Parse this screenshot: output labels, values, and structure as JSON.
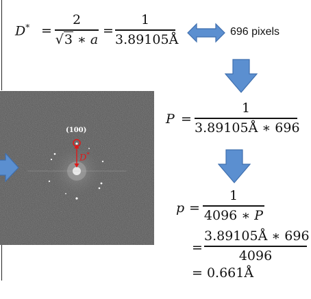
{
  "colors": {
    "arrow_fill": "#5b8fd0",
    "arrow_stroke": "#3f6fae",
    "annotation_red": "#e01818",
    "fft_bg": "#4a4a4a",
    "text": "#111111"
  },
  "eq1": {
    "lhs": "D",
    "lhs_sup": "*",
    "eq": "=",
    "frac1_num": "2",
    "frac1_den_radicand": "3",
    "frac1_den_rest": " ∗ a",
    "eq2": "=",
    "frac2_num": "1",
    "frac2_den": "3.89105Å"
  },
  "pixels_label": "696 pixels",
  "eq2": {
    "lhs": "P",
    "eq": "=",
    "num": "1",
    "den": "3.89105Å ∗ 696"
  },
  "eq3": {
    "lhs": "p",
    "eq": "=",
    "num": "1",
    "den_a": "4096 ∗ ",
    "den_b": "P",
    "eq2": "=",
    "num2": "3.89105Å ∗ 696",
    "den2": "4096",
    "eq3": "= 0.661Å"
  },
  "fft": {
    "spot_label": "(100)",
    "dstar_label": "D",
    "dstar_sup": "*"
  },
  "icons": {
    "double_arrow": "double-headed-arrow-icon",
    "down_arrow": "down-arrow-icon",
    "right_arrow": "right-arrow-icon"
  }
}
